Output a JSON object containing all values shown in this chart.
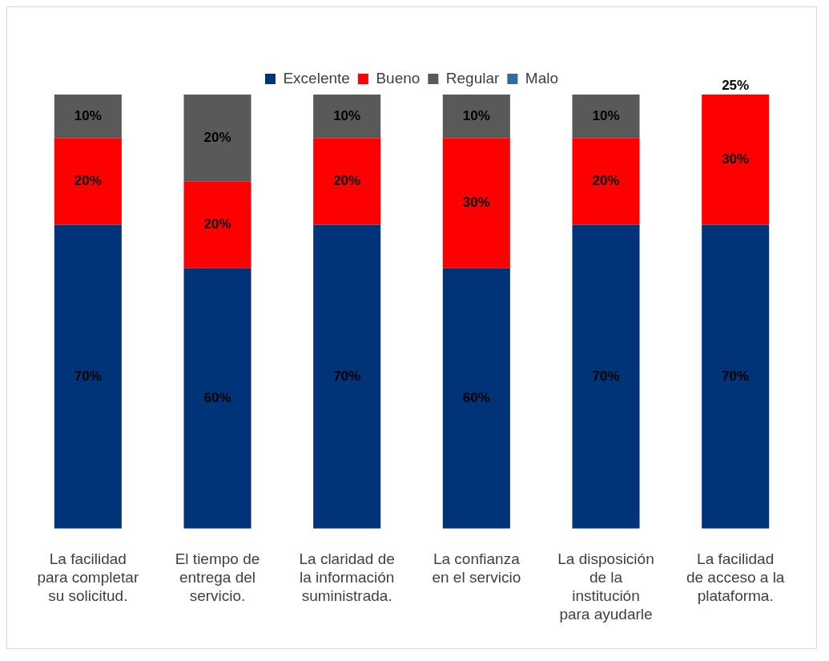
{
  "chart_data": {
    "type": "bar",
    "stacked": true,
    "legend": "top",
    "categories": [
      "La facilidad para completar su solicitud.",
      "El tiempo de entrega del servicio.",
      "La claridad de la información suministrada.",
      "La confianza en el servicio",
      "La disposición de la institución para ayudarle",
      "La facilidad de acceso a la plataforma."
    ],
    "series": [
      {
        "name": "Excelente",
        "color": "#003377",
        "values": [
          70,
          60,
          70,
          60,
          70,
          70
        ],
        "value_labels": [
          "70%",
          "60%",
          "70%",
          "60%",
          "70%",
          "70%"
        ]
      },
      {
        "name": "Bueno",
        "color": "#ff0000",
        "values": [
          20,
          20,
          20,
          30,
          20,
          30
        ],
        "value_labels": [
          "20%",
          "20%",
          "20%",
          "30%",
          "20%",
          "30%"
        ]
      },
      {
        "name": "Regular",
        "color": "#595959",
        "values": [
          10,
          20,
          10,
          10,
          10,
          null
        ],
        "value_labels": [
          "10%",
          "20%",
          "10%",
          "10%",
          "10%",
          null
        ]
      },
      {
        "name": "Malo",
        "color": "#2e6ca4",
        "values": [
          null,
          null,
          null,
          null,
          null,
          null
        ],
        "value_labels": [
          null,
          null,
          null,
          null,
          null,
          null
        ]
      }
    ],
    "annotations": [
      {
        "text": "25%",
        "x": "La facilidad de acceso a la plataforma.",
        "y": 100
      }
    ]
  }
}
